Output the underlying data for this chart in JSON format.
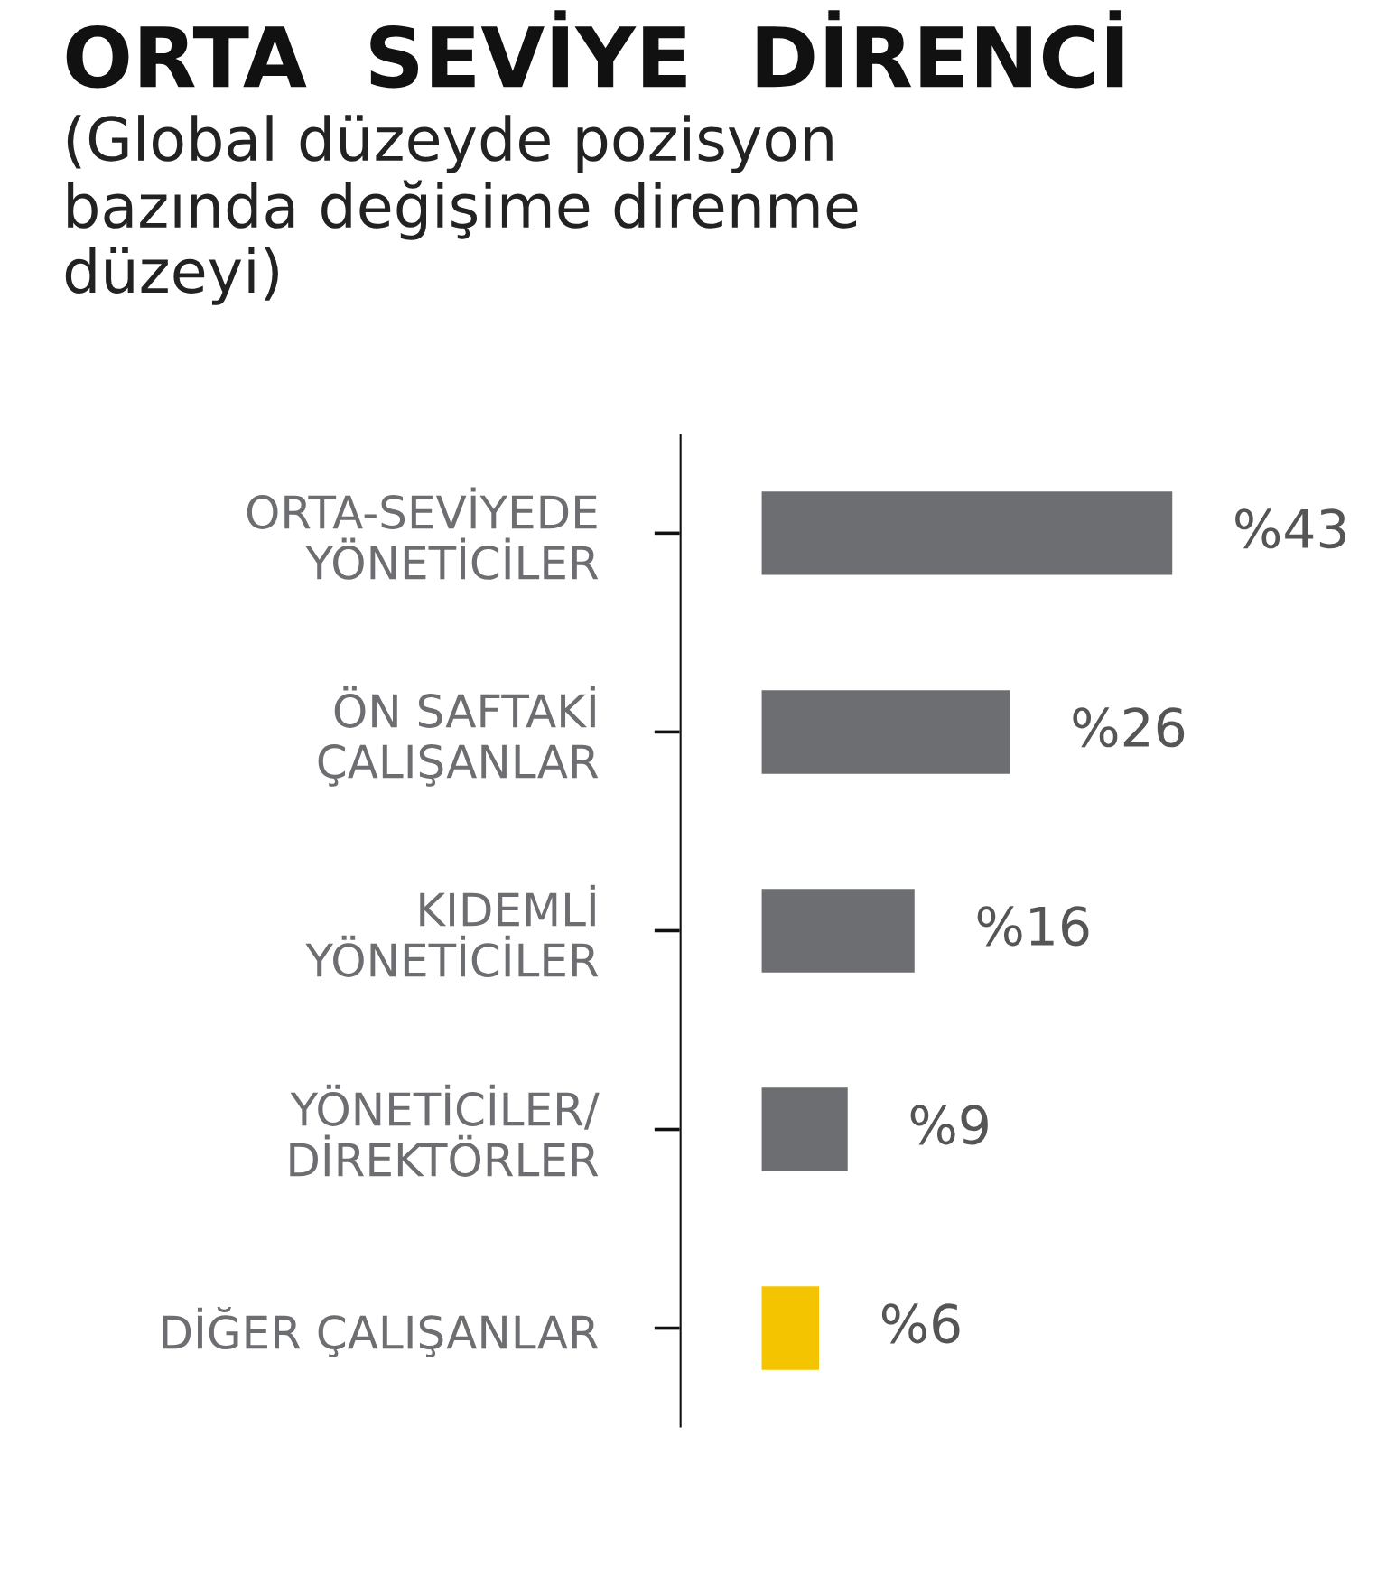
{
  "chart_data": {
    "type": "bar",
    "orientation": "horizontal",
    "title": "ORTA SEVİYE DİRENCİ",
    "subtitle": "(Global düzeyde pozisyon\nbazında değişime direnme\ndüzeyi)",
    "categories": [
      "ORTA-SEVİYEDE\nYÖNETİCİLER",
      "ÖN SAFTAKİ\nÇALIŞANLAR",
      "KIDEMLİ\nYÖNETİCİLER",
      "YÖNETİCİLER/\nDİREKTÖRLER",
      "DİĞER ÇALIŞANLAR"
    ],
    "values": [
      43,
      26,
      16,
      9,
      6
    ],
    "colors": [
      "#6d6e71",
      "#6d6e71",
      "#6d6e71",
      "#6d6e71",
      "#f5c400"
    ],
    "value_labels": [
      "%43",
      "%26",
      "%16",
      "%9",
      "%6"
    ],
    "legend": false,
    "grid": false
  }
}
